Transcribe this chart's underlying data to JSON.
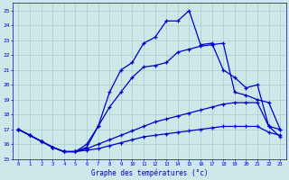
{
  "xlabel": "Graphe des températures (°c)",
  "x_ticks": [
    0,
    1,
    2,
    3,
    4,
    5,
    6,
    7,
    8,
    9,
    10,
    11,
    12,
    13,
    14,
    15,
    16,
    17,
    18,
    19,
    20,
    21,
    22,
    23
  ],
  "x_tick_labels": [
    "0",
    "1",
    "2",
    "3",
    "4",
    "5",
    "6",
    "7",
    "8",
    "9",
    "10",
    "11",
    "12",
    "13",
    "14",
    "15",
    "16",
    "17",
    "18",
    "19",
    "20",
    "21",
    "22",
    "23"
  ],
  "ylim": [
    15,
    25.5
  ],
  "xlim": [
    -0.5,
    23.5
  ],
  "yticks": [
    15,
    16,
    17,
    18,
    19,
    20,
    21,
    22,
    23,
    24,
    25
  ],
  "bg_color": "#cce8e8",
  "grid_color": "#aacccc",
  "line_color": "#0000cc",
  "line1_x": [
    0,
    1,
    2,
    3,
    4,
    5,
    6,
    7,
    8,
    9,
    10,
    11,
    12,
    13,
    14,
    15,
    16,
    17,
    18,
    19,
    20,
    21,
    22,
    23
  ],
  "line1": [
    17.0,
    16.6,
    16.2,
    15.8,
    15.5,
    15.5,
    15.6,
    15.7,
    15.9,
    16.1,
    16.3,
    16.5,
    16.6,
    16.7,
    16.8,
    16.9,
    17.0,
    17.1,
    17.2,
    17.2,
    17.2,
    17.2,
    16.8,
    16.6
  ],
  "line2_x": [
    0,
    1,
    2,
    3,
    4,
    5,
    6,
    7,
    8,
    9,
    10,
    11,
    12,
    13,
    14,
    15,
    16,
    17,
    18,
    19,
    20,
    21,
    22,
    23
  ],
  "line2": [
    17.0,
    16.6,
    16.2,
    15.8,
    15.5,
    15.5,
    15.7,
    16.0,
    16.3,
    16.6,
    16.9,
    17.2,
    17.5,
    17.7,
    17.9,
    18.1,
    18.3,
    18.5,
    18.7,
    18.8,
    18.8,
    18.8,
    17.2,
    17.0
  ],
  "line3_x": [
    0,
    1,
    2,
    3,
    4,
    5,
    6,
    7,
    8,
    9,
    10,
    11,
    12,
    13,
    14,
    15,
    16,
    17,
    18,
    19,
    20,
    21,
    22,
    23
  ],
  "line3": [
    17.0,
    16.6,
    16.2,
    15.8,
    15.5,
    15.5,
    16.0,
    17.2,
    18.5,
    19.5,
    20.5,
    21.2,
    21.3,
    21.5,
    22.2,
    22.4,
    22.6,
    22.7,
    22.8,
    19.5,
    19.3,
    19.0,
    18.8,
    17.0
  ],
  "line4_x": [
    0,
    1,
    2,
    3,
    4,
    5,
    6,
    7,
    8,
    9,
    10,
    11,
    12,
    13,
    14,
    15,
    16,
    17,
    18,
    19,
    20,
    21,
    22,
    23
  ],
  "line4": [
    17.0,
    16.6,
    16.2,
    15.8,
    15.5,
    15.5,
    15.8,
    17.2,
    19.5,
    21.0,
    21.5,
    22.8,
    23.2,
    24.3,
    24.3,
    25.0,
    22.7,
    22.8,
    21.0,
    20.5,
    19.8,
    20.0,
    17.2,
    16.5
  ]
}
